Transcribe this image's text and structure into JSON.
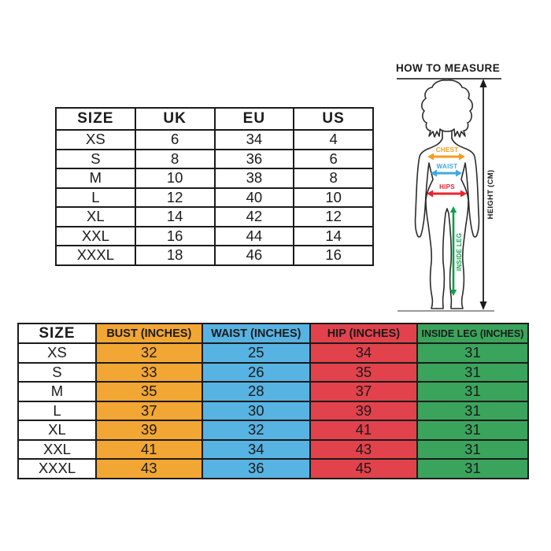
{
  "size_conversion_table": {
    "headers": [
      "SIZE",
      "UK",
      "EU",
      "US"
    ],
    "rows": [
      [
        "XS",
        "6",
        "34",
        "4"
      ],
      [
        "S",
        "8",
        "36",
        "6"
      ],
      [
        "M",
        "10",
        "38",
        "8"
      ],
      [
        "L",
        "12",
        "40",
        "10"
      ],
      [
        "XL",
        "14",
        "42",
        "12"
      ],
      [
        "XXL",
        "16",
        "44",
        "14"
      ],
      [
        "XXXL",
        "18",
        "46",
        "16"
      ]
    ]
  },
  "measurements_table": {
    "headers": [
      "SIZE",
      "BUST (INCHES)",
      "WAIST (INCHES)",
      "HIP (INCHES)",
      "INSIDE LEG (INCHES)"
    ],
    "column_colors": [
      "#ffffff",
      "#F2A633",
      "#57B3E2",
      "#E2424C",
      "#3BA45C"
    ],
    "rows": [
      [
        "XS",
        "32",
        "25",
        "34",
        "31"
      ],
      [
        "S",
        "33",
        "26",
        "35",
        "31"
      ],
      [
        "M",
        "35",
        "28",
        "37",
        "31"
      ],
      [
        "L",
        "37",
        "30",
        "39",
        "31"
      ],
      [
        "XL",
        "39",
        "32",
        "41",
        "31"
      ],
      [
        "XXL",
        "41",
        "34",
        "43",
        "31"
      ],
      [
        "XXXL",
        "43",
        "36",
        "45",
        "31"
      ]
    ]
  },
  "how_to_measure": {
    "title": "HOW TO MEASURE",
    "chest_label": "CHEST",
    "waist_label": "WAIST",
    "hips_label": "HIPS",
    "inside_leg_label": "INSIDE LEG",
    "height_label": "HEIGHT (CM)",
    "arrow_colors": {
      "chest": "#F59C1F",
      "waist": "#3FA9E0",
      "hips": "#E8232E",
      "inside_leg": "#0E9F4A",
      "height": "#1b1b1b"
    }
  },
  "chart_data": [
    {
      "type": "table",
      "title": "Size conversion table",
      "columns": [
        "SIZE",
        "UK",
        "EU",
        "US"
      ],
      "rows": [
        [
          "XS",
          6,
          34,
          4
        ],
        [
          "S",
          8,
          36,
          6
        ],
        [
          "M",
          10,
          38,
          8
        ],
        [
          "L",
          12,
          40,
          10
        ],
        [
          "XL",
          14,
          42,
          12
        ],
        [
          "XXL",
          16,
          44,
          14
        ],
        [
          "XXXL",
          18,
          46,
          16
        ]
      ]
    },
    {
      "type": "table",
      "title": "Body measurements table",
      "columns": [
        "SIZE",
        "BUST (INCHES)",
        "WAIST (INCHES)",
        "HIP (INCHES)",
        "INSIDE LEG (INCHES)"
      ],
      "rows": [
        [
          "XS",
          32,
          25,
          34,
          31
        ],
        [
          "S",
          33,
          26,
          35,
          31
        ],
        [
          "M",
          35,
          28,
          37,
          31
        ],
        [
          "L",
          37,
          30,
          39,
          31
        ],
        [
          "XL",
          39,
          32,
          41,
          31
        ],
        [
          "XXL",
          41,
          34,
          43,
          31
        ],
        [
          "XXXL",
          43,
          36,
          45,
          31
        ]
      ]
    }
  ]
}
